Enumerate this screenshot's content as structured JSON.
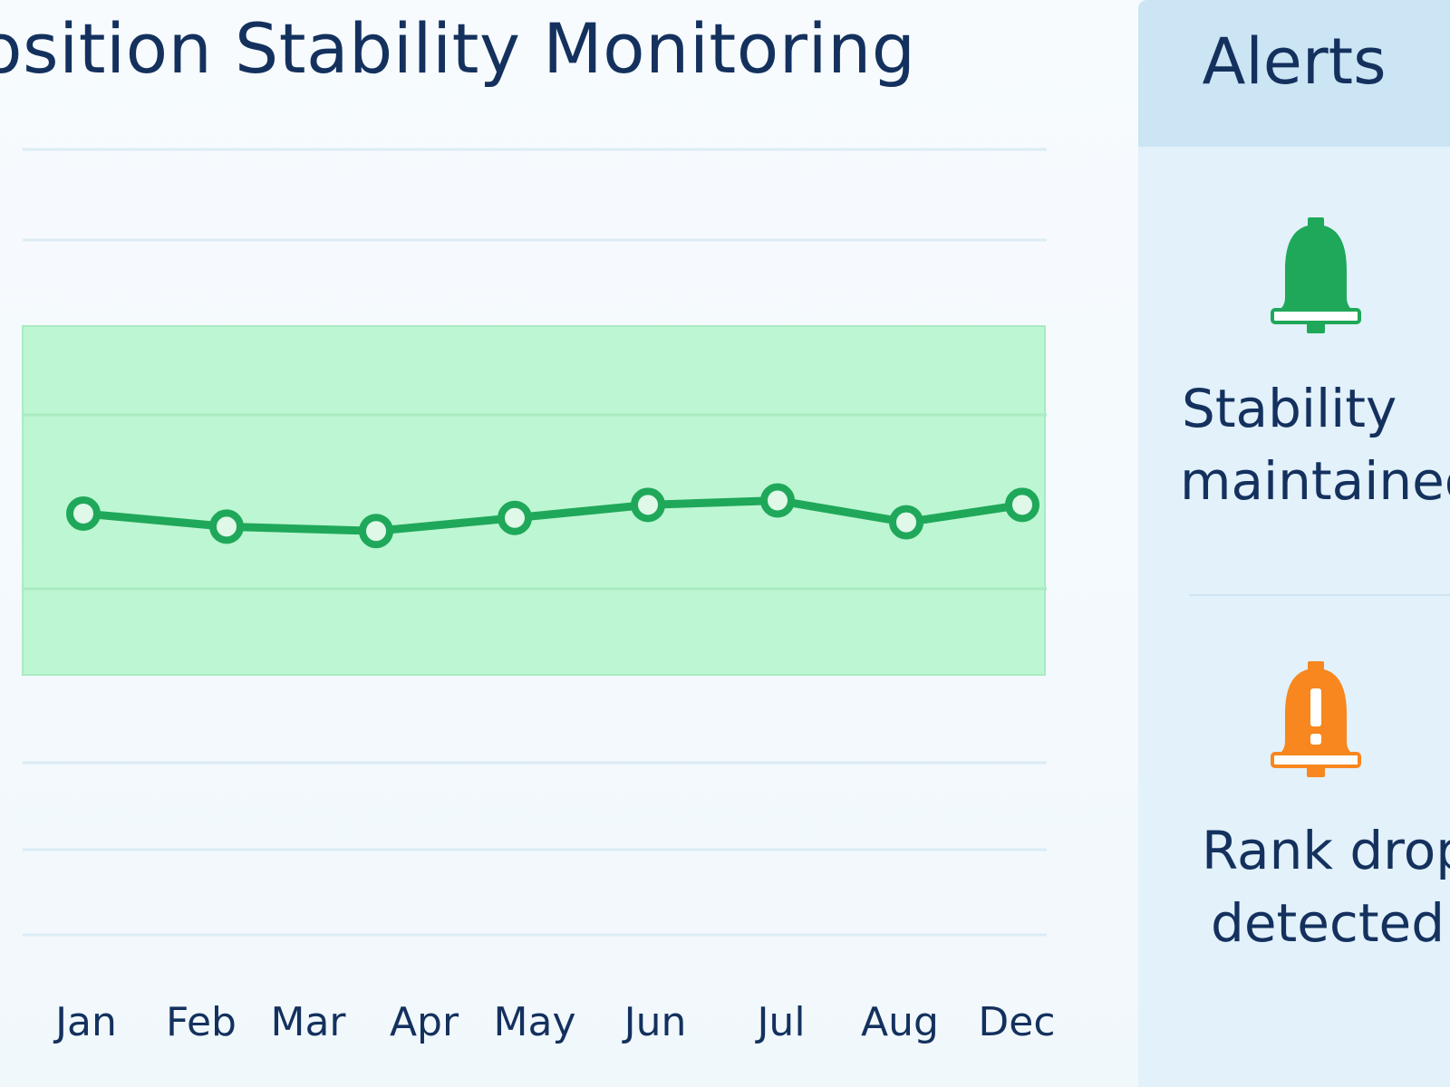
{
  "header": {
    "title": "osition Stability Monitoring"
  },
  "colors": {
    "line": "#1fa85a",
    "band": "#bdf6d2",
    "grid": "#dcecf5",
    "text": "#14315e",
    "alert_ok": "#1fa85a",
    "alert_warn": "#f7871e"
  },
  "chart_data": {
    "type": "line",
    "title": "osition Stability Monitoring",
    "xlabel": "",
    "ylabel": "",
    "categories": [
      "Jan",
      "Feb",
      "Mar",
      "Apr",
      "May",
      "Jun",
      "Jul",
      "Aug",
      "Dec"
    ],
    "series": [
      {
        "values": [
          5.85,
          5.7,
          5.65,
          5.8,
          5.95,
          6.0,
          5.75,
          5.95,
          5.9
        ]
      }
    ],
    "stability_band": [
      4.0,
      8.0
    ],
    "ylim": [
      0,
      10
    ],
    "grid": true,
    "legend": "none"
  },
  "alerts": {
    "title": "Alerts",
    "items": [
      {
        "icon": "bell-icon",
        "status": "ok",
        "text_line1": "Stability",
        "text_line2": "maintained"
      },
      {
        "icon": "bell-exclamation-icon",
        "status": "warning",
        "text_line1": "Rank drop",
        "text_line2": "detected"
      }
    ]
  }
}
